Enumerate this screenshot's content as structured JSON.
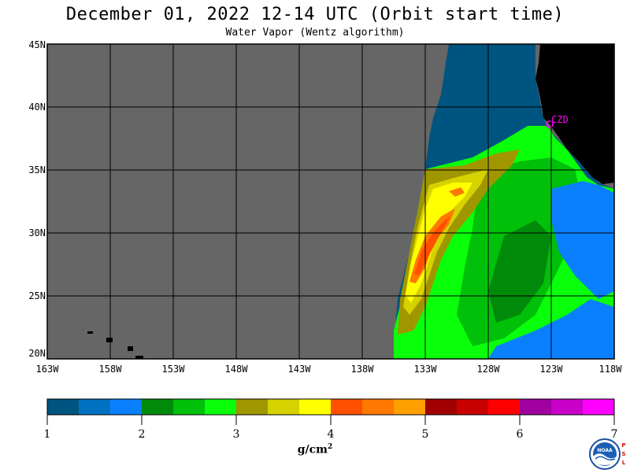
{
  "title": "December 01, 2022  12-14 UTC  (Orbit start time)",
  "subtitle": "Water Vapor (Wentz algorithm)",
  "map": {
    "lat_labels": [
      "45N",
      "40N",
      "35N",
      "30N",
      "25N",
      "20N"
    ],
    "lon_labels": [
      "163W",
      "158W",
      "153W",
      "148W",
      "143W",
      "138W",
      "133W",
      "128W",
      "123W",
      "118W"
    ],
    "station_label": "CZD",
    "colors": {
      "no_data": "#666666",
      "land": "#000000",
      "grid": "#000000",
      "station": "#ff00ff"
    }
  },
  "colorbar": {
    "tick_labels": [
      "1",
      "2",
      "3",
      "4",
      "5",
      "6",
      "7"
    ],
    "units_base": "g/cm",
    "units_exp": "2",
    "colors": [
      "#005480",
      "#0070c0",
      "#0a80ff",
      "#008a0a",
      "#00c00a",
      "#0aff0a",
      "#a09600",
      "#d6d200",
      "#ffff00",
      "#ff5000",
      "#ff7800",
      "#ffa000",
      "#a00000",
      "#c80000",
      "#ff0000",
      "#a000a0",
      "#c800c8",
      "#ff00ff"
    ]
  },
  "logo": {
    "agency": "NOAA",
    "lab_letters": [
      "P",
      "S",
      "L"
    ]
  }
}
